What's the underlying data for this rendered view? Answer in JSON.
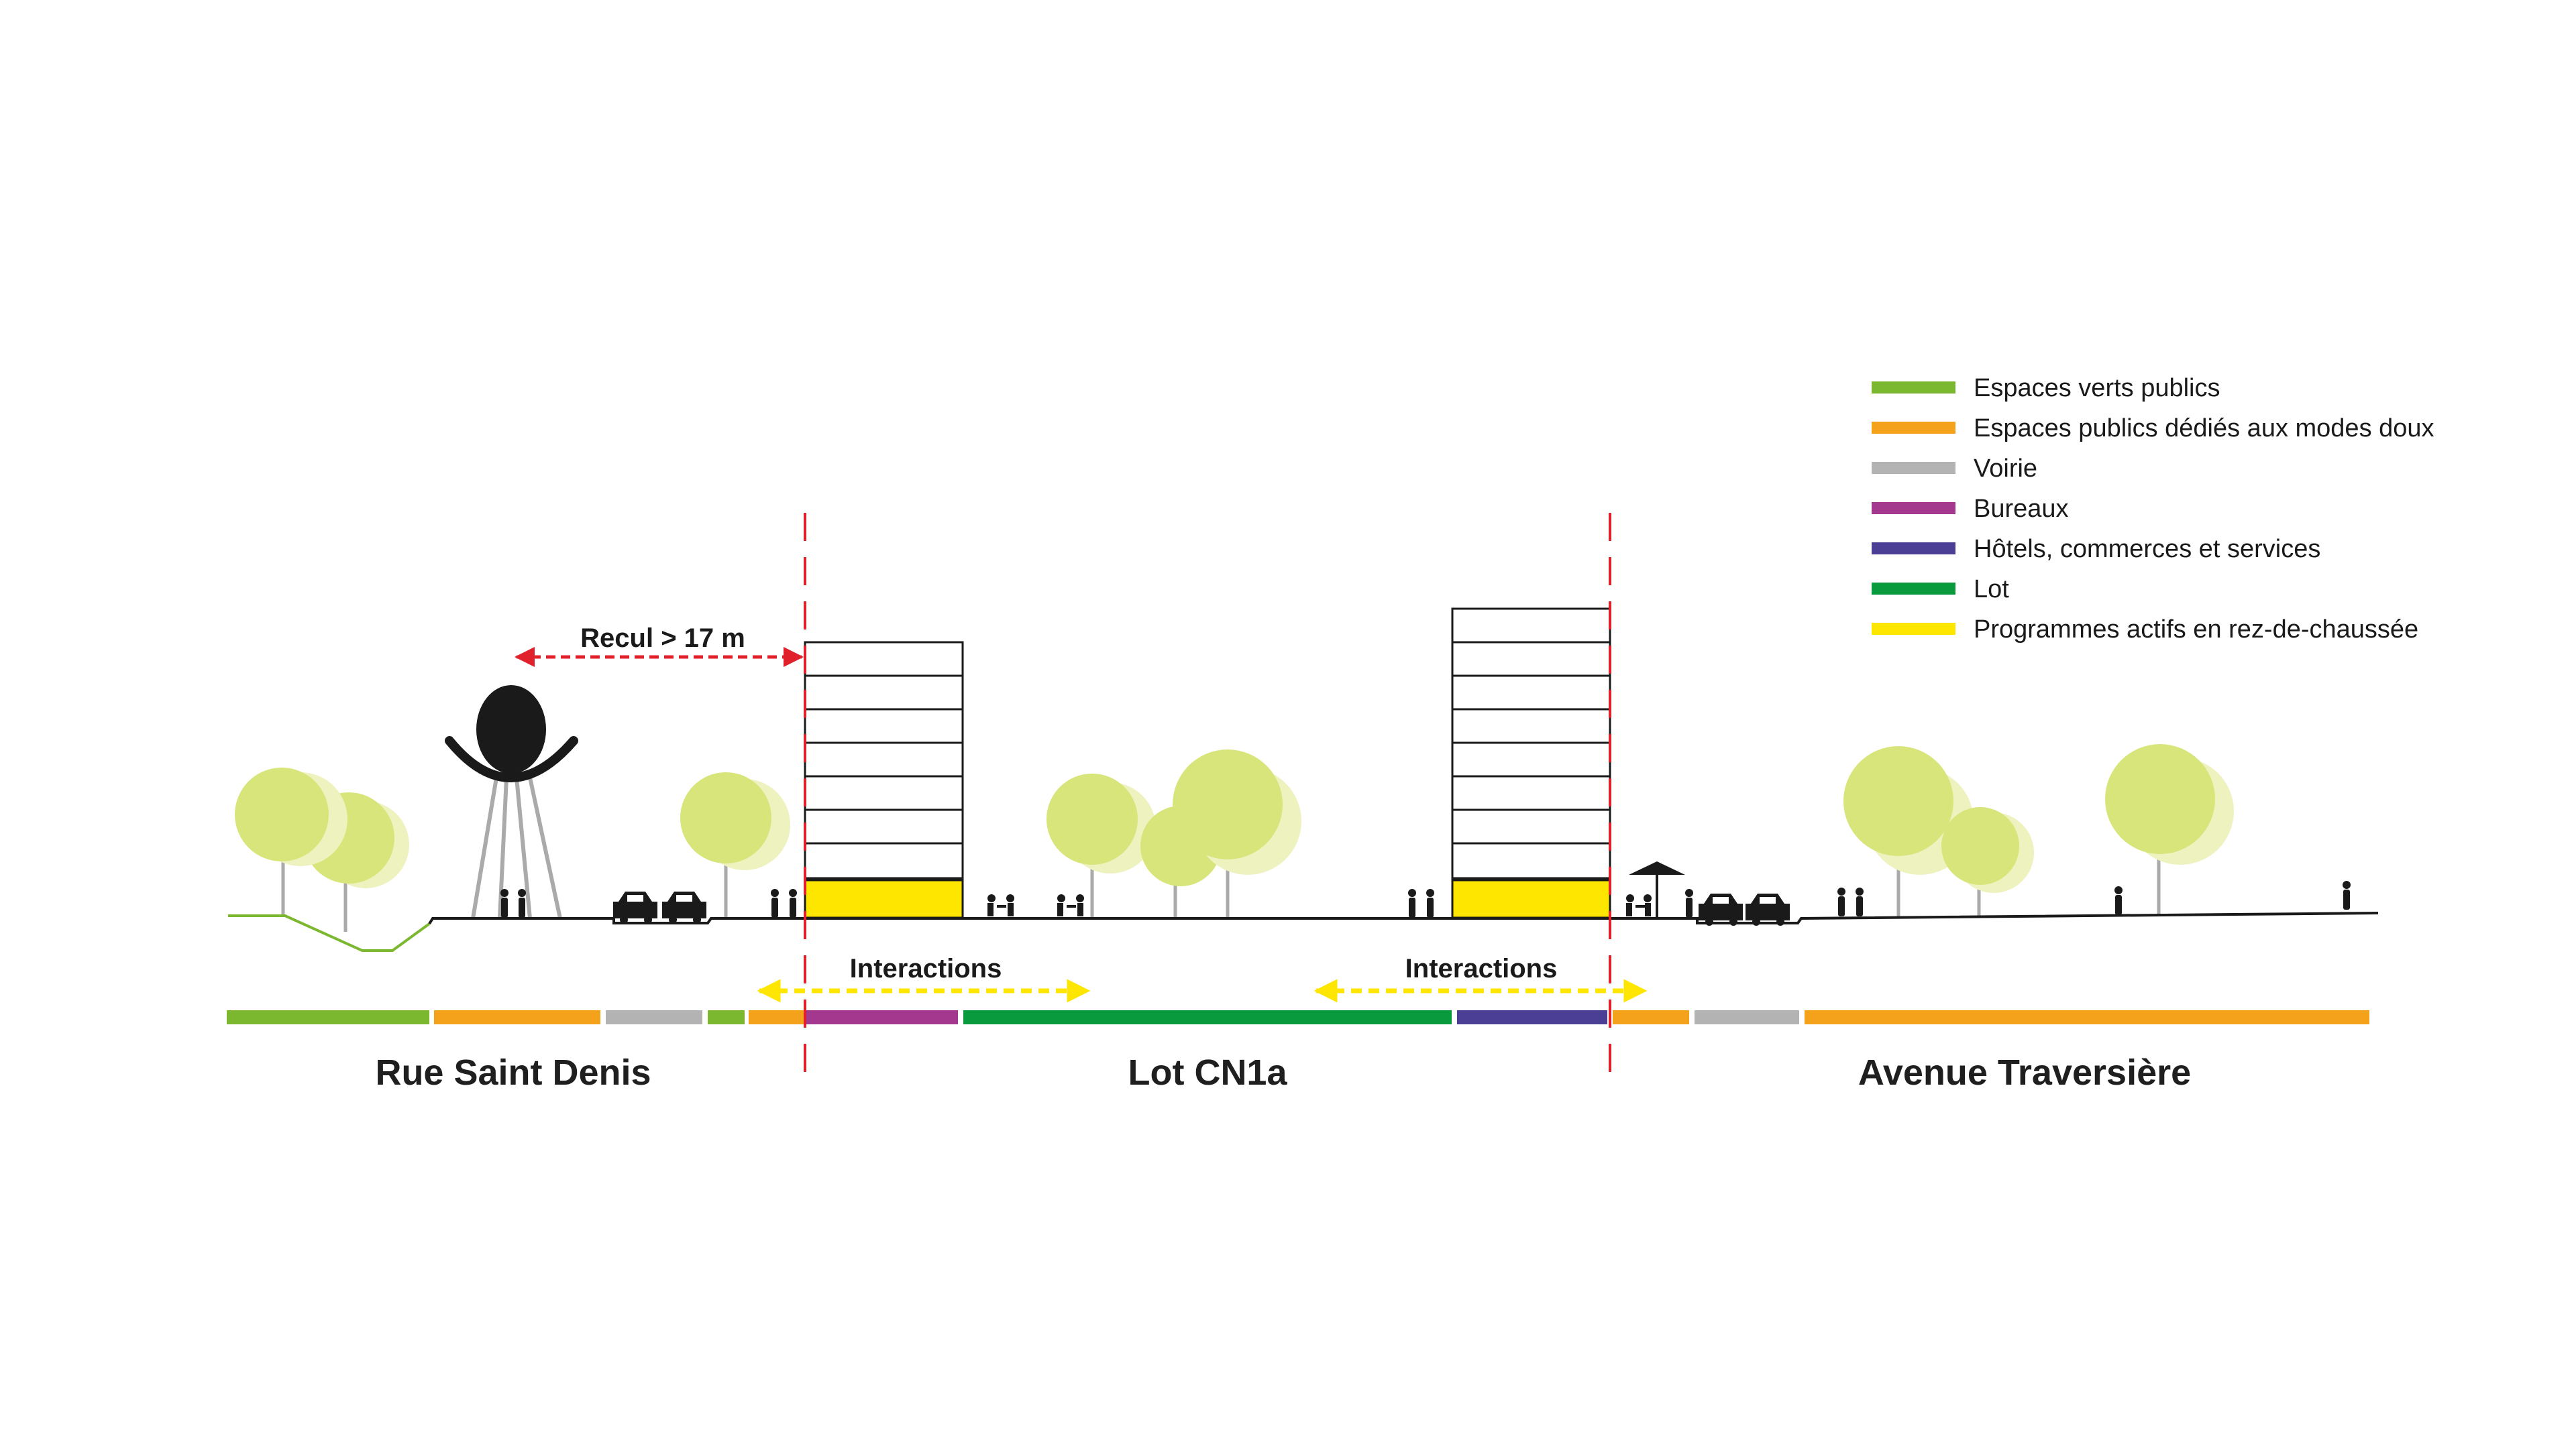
{
  "legend": [
    {
      "label": "Espaces verts publics",
      "color": "#7cb82f"
    },
    {
      "label": "Espaces publics dédiés aux modes doux",
      "color": "#f4a21c"
    },
    {
      "label": "Voirie",
      "color": "#b3b3b3"
    },
    {
      "label": "Bureaux",
      "color": "#a3388e"
    },
    {
      "label": "Hôtels, commerces et services",
      "color": "#4b3f95"
    },
    {
      "label": "Lot",
      "color": "#0a9a3e"
    },
    {
      "label": "Programmes actifs en rez-de-chaussée",
      "color": "#ffe600"
    }
  ],
  "annotations": {
    "setback": "Recul > 17 m",
    "interactions_left": "Interactions",
    "interactions_right": "Interactions"
  },
  "sections": {
    "left": "Rue Saint Denis",
    "center": "Lot CN1a",
    "right": "Avenue Traversière"
  },
  "colors": {
    "tree_front": "#d8e57a",
    "tree_back": "#eef2bf",
    "ground": "#1a1a1a",
    "setback_arrow": "#e0202a",
    "interaction_arrow": "#ffe600",
    "limit_line": "#e0202a"
  }
}
